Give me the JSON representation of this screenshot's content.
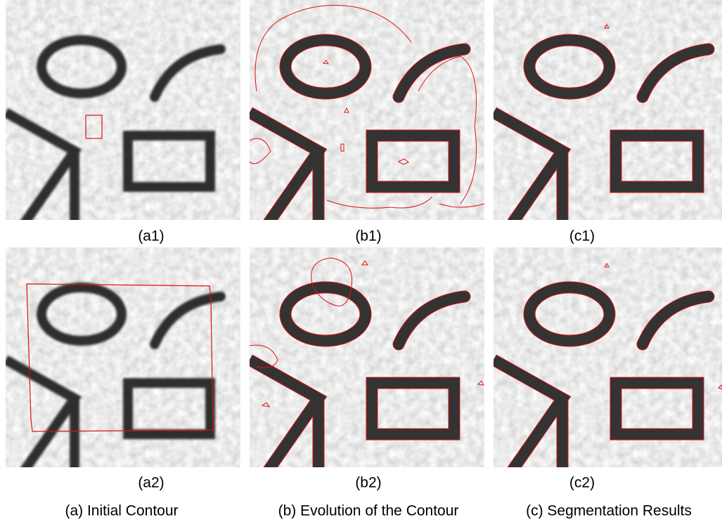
{
  "panels": [
    {
      "label": "(a1)"
    },
    {
      "label": "(b1)"
    },
    {
      "label": "(c1)"
    },
    {
      "label": "(a2)"
    },
    {
      "label": "(b2)"
    },
    {
      "label": "(c2)"
    }
  ],
  "captions": [
    "(a) Initial Contour",
    "(b) Evolution of the Contour",
    "(c) Segmentation Results"
  ]
}
